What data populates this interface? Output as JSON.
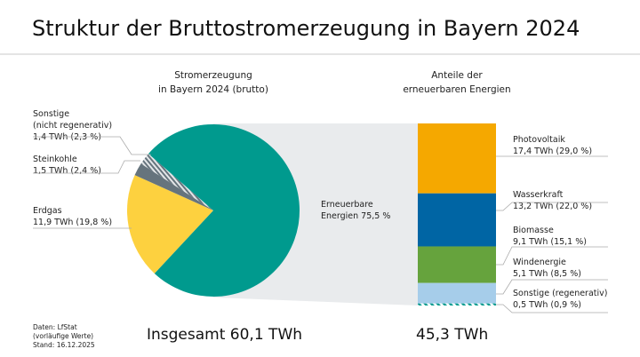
{
  "title": "Struktur der Bruttostromerzeugung in Bayern 2024",
  "left_heading": [
    "Stromerzeugung",
    "in Bayern 2024 (brutto)"
  ],
  "right_heading": [
    "Anteile der",
    "erneuerbaren Energien"
  ],
  "total_left": "Insgesamt 60,1 TWh",
  "total_right": "45,3 TWh",
  "source": [
    "Daten: LfStat",
    "(vorläufige Werte)",
    "Stand: 16.12.2025"
  ],
  "chart_data": [
    {
      "type": "pie",
      "title": "Stromerzeugung in Bayern 2024 (brutto)",
      "unit": "TWh",
      "total": 60.1,
      "slices": [
        {
          "name": "Erneuerbare Energien",
          "percent": 75.5,
          "label": [
            "Erneuerbare",
            "Energien  75,5 %"
          ],
          "color": "#009a8e"
        },
        {
          "name": "Erdgas",
          "value": 11.9,
          "percent": 19.8,
          "label": [
            "Erdgas",
            "11,9 TWh (19,8 %)"
          ],
          "color": "#fdd13f"
        },
        {
          "name": "Steinkohle",
          "value": 1.5,
          "percent": 2.4,
          "label": [
            "Steinkohle",
            "1,5 TWh (2,4 %)"
          ],
          "color": "#66747d"
        },
        {
          "name": "Sonstige (nicht regenerativ)",
          "value": 1.4,
          "percent": 2.3,
          "label": [
            "Sonstige",
            "(nicht regenerativ)",
            "1,4 TWh (2,3 %)"
          ],
          "color": "#b4bcc2",
          "hatched": true
        }
      ]
    },
    {
      "type": "bar",
      "stacked": true,
      "title": "Anteile der erneuerbaren Energien",
      "unit": "TWh",
      "total": 45.3,
      "segments": [
        {
          "name": "Photovoltaik",
          "value": 17.4,
          "percent": 29.0,
          "label": [
            "Photovoltaik",
            "17,4 TWh (29,0 %)"
          ],
          "color": "#f5a800"
        },
        {
          "name": "Wasserkraft",
          "value": 13.2,
          "percent": 22.0,
          "label": [
            "Wasserkraft",
            "13,2 TWh (22,0 %)"
          ],
          "color": "#0065a4"
        },
        {
          "name": "Biomasse",
          "value": 9.1,
          "percent": 15.1,
          "label": [
            "Biomasse",
            "9,1 TWh (15,1 %)"
          ],
          "color": "#66a33d"
        },
        {
          "name": "Windenergie",
          "value": 5.1,
          "percent": 8.5,
          "label": [
            "Windenergie",
            "5,1 TWh (8,5 %)"
          ],
          "color": "#a6cdea"
        },
        {
          "name": "Sonstige (regenerativ)",
          "value": 0.5,
          "percent": 0.9,
          "label": [
            "Sonstige (regenerativ)",
            "0,5 TWh (0,9 %)"
          ],
          "color": "#009a8e",
          "hatched": true
        }
      ]
    }
  ]
}
